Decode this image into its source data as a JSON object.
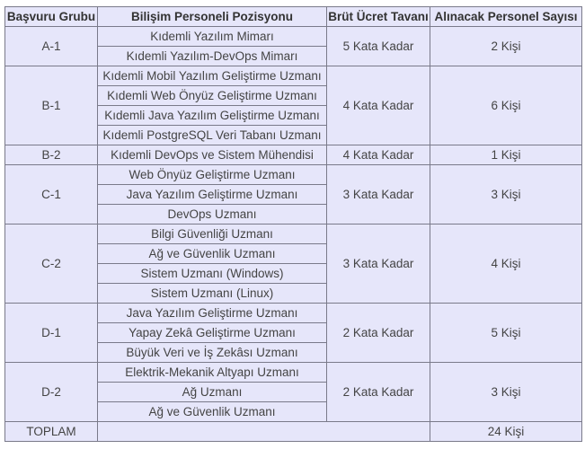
{
  "headers": [
    "Başvuru Grubu",
    "Bilişim Personeli Pozisyonu",
    "Brüt Ücret Tavanı",
    "Alınacak Personel Sayısı"
  ],
  "groups": [
    {
      "group": "A-1",
      "positions": [
        "Kıdemli Yazılım Mimarı",
        "Kıdemli Yazılım-DevOps Mimarı"
      ],
      "salary": "5 Kata Kadar",
      "count": "2 Kişi"
    },
    {
      "group": "B-1",
      "positions": [
        "Kıdemli Mobil Yazılım Geliştirme Uzmanı",
        "Kıdemli Web Önyüz Geliştirme Uzmanı",
        "Kıdemli Java Yazılım Geliştirme Uzmanı",
        "Kıdemli PostgreSQL Veri Tabanı Uzmanı"
      ],
      "salary": "4 Kata Kadar",
      "count": "6 Kişi"
    },
    {
      "group": "B-2",
      "positions": [
        "Kıdemli DevOps ve Sistem Mühendisi"
      ],
      "salary": "4 Kata Kadar",
      "count": "1 Kişi"
    },
    {
      "group": "C-1",
      "positions": [
        "Web Önyüz Geliştirme Uzmanı",
        "Java Yazılım Geliştirme Uzmanı",
        "DevOps Uzmanı"
      ],
      "salary": "3 Kata Kadar",
      "count": "3 Kişi"
    },
    {
      "group": "C-2",
      "positions": [
        "Bilgi Güvenliği Uzmanı",
        "Ağ ve Güvenlik Uzmanı",
        "Sistem Uzmanı (Windows)",
        "Sistem Uzmanı (Linux)"
      ],
      "salary": "3 Kata Kadar",
      "count": "4 Kişi"
    },
    {
      "group": "D-1",
      "positions": [
        "Java Yazılım Geliştirme Uzmanı",
        "Yapay Zekâ Geliştirme Uzmanı",
        "Büyük Veri ve İş Zekâsı Uzmanı"
      ],
      "salary": "2 Kata Kadar",
      "count": "5 Kişi"
    },
    {
      "group": "D-2",
      "positions": [
        "Elektrik-Mekanik Altyapı Uzmanı",
        "Ağ Uzmanı",
        "Ağ ve Güvenlik Uzmanı"
      ],
      "salary": "2 Kata Kadar",
      "count": "3 Kişi"
    }
  ],
  "total": {
    "label": "TOPLAM",
    "count": "24 Kişi"
  }
}
